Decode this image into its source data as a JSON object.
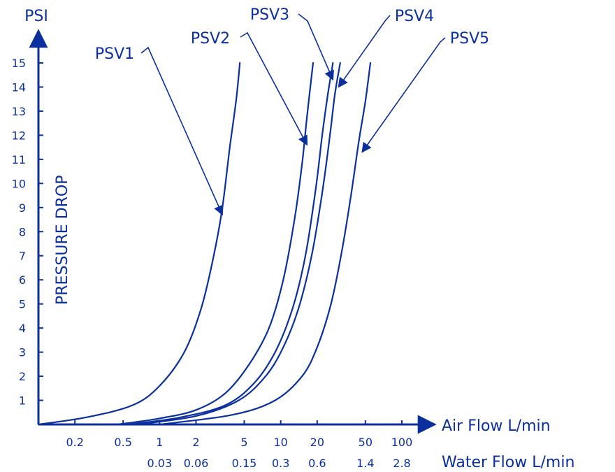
{
  "chart_data": {
    "type": "line",
    "title": "",
    "x_scale": "log",
    "y_label_unit": "PSI",
    "y_label": "PRESSURE DROP",
    "x_label_air": "Air Flow L/min",
    "x_label_water": "Water Flow L/min",
    "ylim": [
      0,
      15
    ],
    "xlim_air": [
      0.1,
      100
    ],
    "y_ticks": [
      "1",
      "2",
      "3",
      "4",
      "5",
      "6",
      "7",
      "8",
      "9",
      "10",
      "11",
      "12",
      "13",
      "14",
      "15"
    ],
    "x_ticks_air": [
      {
        "value": 0.2,
        "label": "0.2"
      },
      {
        "value": 0.5,
        "label": "0.5"
      },
      {
        "value": 1,
        "label": "1"
      },
      {
        "value": 2,
        "label": "2"
      },
      {
        "value": 5,
        "label": "5"
      },
      {
        "value": 10,
        "label": "10"
      },
      {
        "value": 20,
        "label": "20"
      },
      {
        "value": 50,
        "label": "50"
      },
      {
        "value": 100,
        "label": "100"
      }
    ],
    "x_ticks_water": [
      {
        "air_value": 1,
        "label": "0.03"
      },
      {
        "air_value": 2,
        "label": "0.06"
      },
      {
        "air_value": 5,
        "label": "0.15"
      },
      {
        "air_value": 10,
        "label": "0.3"
      },
      {
        "air_value": 20,
        "label": "0.6"
      },
      {
        "air_value": 50,
        "label": "1.4"
      },
      {
        "air_value": 100,
        "label": "2.8"
      }
    ],
    "series": [
      {
        "name": "PSV1",
        "points": [
          [
            0.1,
            0
          ],
          [
            0.25,
            0.3
          ],
          [
            0.6,
            0.8
          ],
          [
            1.0,
            1.6
          ],
          [
            1.6,
            3.0
          ],
          [
            2.2,
            4.8
          ],
          [
            2.8,
            7.0
          ],
          [
            3.3,
            9.0
          ],
          [
            3.8,
            11.5
          ],
          [
            4.3,
            13.5
          ],
          [
            4.6,
            15
          ]
        ]
      },
      {
        "name": "PSV2",
        "points": [
          [
            0.45,
            0
          ],
          [
            1.0,
            0.25
          ],
          [
            2.0,
            0.6
          ],
          [
            3.5,
            1.3
          ],
          [
            5.5,
            2.5
          ],
          [
            8.0,
            4.0
          ],
          [
            10.5,
            6.0
          ],
          [
            13.0,
            8.5
          ],
          [
            15.0,
            10.8
          ],
          [
            16.5,
            12.8
          ],
          [
            18.5,
            15
          ]
        ]
      },
      {
        "name": "PSV3",
        "points": [
          [
            0.55,
            0
          ],
          [
            1.5,
            0.3
          ],
          [
            3.5,
            0.8
          ],
          [
            6.0,
            1.7
          ],
          [
            9.0,
            3.0
          ],
          [
            12.5,
            4.8
          ],
          [
            16.0,
            7.0
          ],
          [
            19.5,
            9.8
          ],
          [
            22.0,
            12.0
          ],
          [
            24.5,
            13.7
          ],
          [
            27.0,
            15
          ]
        ]
      },
      {
        "name": "PSV4",
        "points": [
          [
            0.65,
            0
          ],
          [
            2.0,
            0.35
          ],
          [
            4.5,
            1.0
          ],
          [
            7.5,
            2.0
          ],
          [
            10.5,
            3.2
          ],
          [
            14.0,
            4.8
          ],
          [
            18.0,
            7.0
          ],
          [
            22.0,
            9.6
          ],
          [
            25.5,
            12.0
          ],
          [
            28.0,
            13.7
          ],
          [
            31.0,
            15
          ]
        ]
      },
      {
        "name": "PSV5",
        "points": [
          [
            1.0,
            0
          ],
          [
            4.0,
            0.4
          ],
          [
            9.0,
            1.0
          ],
          [
            15.0,
            2.0
          ],
          [
            20.0,
            3.2
          ],
          [
            26.0,
            5.0
          ],
          [
            32.0,
            7.2
          ],
          [
            38.0,
            9.5
          ],
          [
            44.0,
            11.7
          ],
          [
            50.0,
            13.4
          ],
          [
            55.0,
            15
          ]
        ]
      }
    ],
    "annotations": [
      {
        "series": "PSV1",
        "label": "PSV1",
        "target": [
          3.3,
          8.7
        ]
      },
      {
        "series": "PSV2",
        "label": "PSV2",
        "target": [
          16.5,
          11.6
        ]
      },
      {
        "series": "PSV3",
        "label": "PSV3",
        "target": [
          27.0,
          14.3
        ]
      },
      {
        "series": "PSV4",
        "label": "PSV4",
        "target": [
          30.0,
          14.0
        ]
      },
      {
        "series": "PSV5",
        "label": "PSV5",
        "target": [
          47.0,
          11.3
        ]
      }
    ],
    "grid": false,
    "legend": "none",
    "colors": {
      "line": "#0b2f9c",
      "text": "#0b2f9c"
    }
  }
}
